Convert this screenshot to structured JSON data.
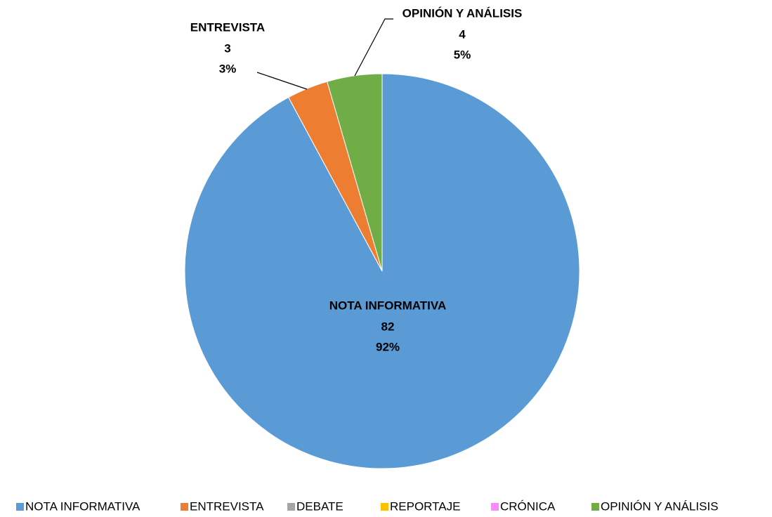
{
  "chart_data": {
    "type": "pie",
    "categories": [
      "NOTA INFORMATIVA",
      "ENTREVISTA",
      "DEBATE",
      "REPORTAJE",
      "CRÓNICA",
      "OPINIÓN Y ANÁLISIS"
    ],
    "values": [
      82,
      3,
      0,
      0,
      0,
      4
    ],
    "percent_labels": [
      "92%",
      "3%",
      null,
      null,
      null,
      "5%"
    ],
    "colors": [
      "#5b9bd5",
      "#ed7d31",
      "#a5a5a5",
      "#ffc000",
      "#ff88ff",
      "#70ad47"
    ],
    "legend": "bottom"
  }
}
